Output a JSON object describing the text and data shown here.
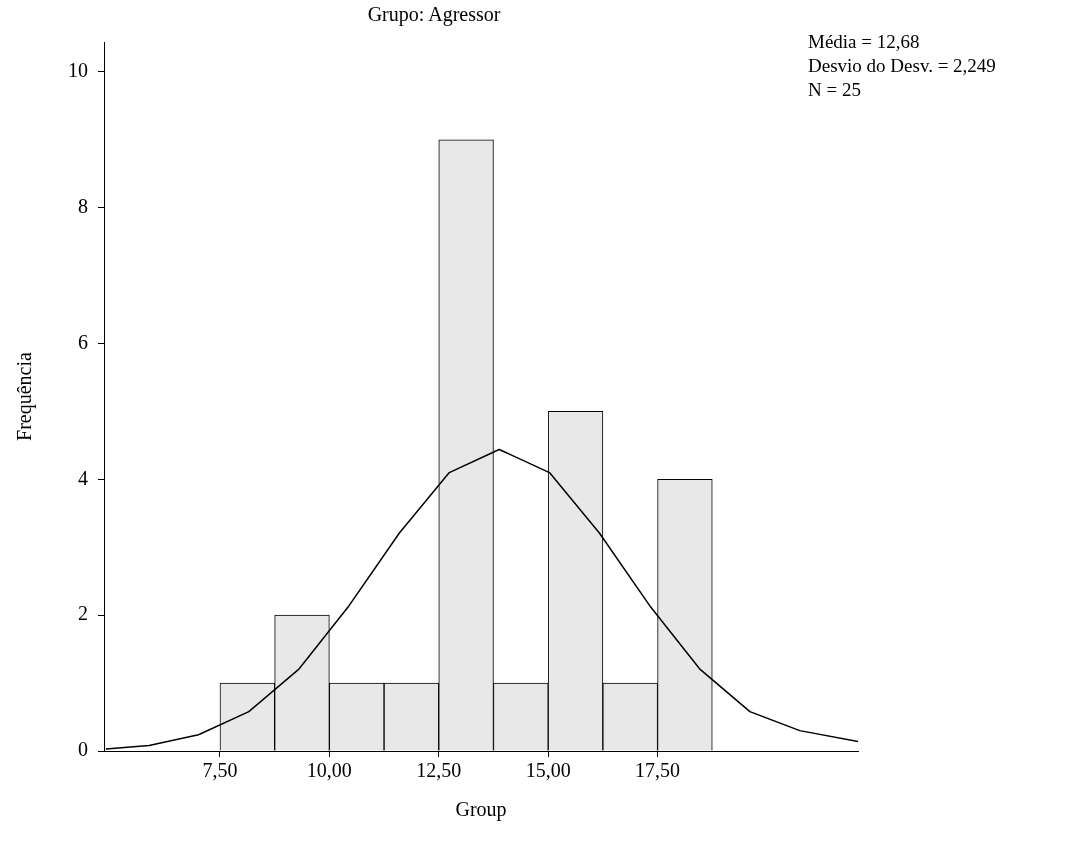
{
  "chart_data": {
    "type": "histogram",
    "title": "Grupo: Agressor",
    "xlabel": "Group",
    "ylabel": "Frequência",
    "bins": [
      7.5,
      8.75,
      10,
      11.25,
      12.5,
      13.75,
      15,
      16.25,
      17.5,
      18.75
    ],
    "values": [
      1,
      2,
      1,
      1,
      9,
      1,
      5,
      1,
      4
    ],
    "color": "#e8e8e8",
    "series": [
      {
        "type": "line",
        "color": "#000000",
        "x": [
          4.89,
          5.88,
          7.01,
          8.16,
          9.31,
          10.45,
          11.6,
          12.74,
          13.88,
          15.03,
          16.17,
          17.32,
          18.46,
          19.61,
          20.75,
          22.08
        ],
        "values": [
          0.03,
          0.08,
          0.24,
          0.58,
          1.21,
          2.14,
          3.21,
          4.1,
          4.44,
          4.1,
          3.21,
          2.14,
          1.21,
          0.58,
          0.3,
          0.14
        ]
      }
    ],
    "xlim": [
      4.85,
      22.08
    ],
    "ylim": [
      0,
      10.44
    ],
    "xticks": [
      {
        "value": 7.5,
        "label": "7,50"
      },
      {
        "value": 10,
        "label": "10,00"
      },
      {
        "value": 12.5,
        "label": "12,50"
      },
      {
        "value": 15,
        "label": "15,00"
      },
      {
        "value": 17.5,
        "label": "17,50"
      }
    ],
    "yticks": [
      0,
      2,
      4,
      6,
      8,
      10
    ],
    "annotations": [
      "Média = 12,68",
      "Desvio do Desv. = 2,249",
      "N = 25"
    ],
    "grid": false,
    "legend": false,
    "marker": "none"
  }
}
